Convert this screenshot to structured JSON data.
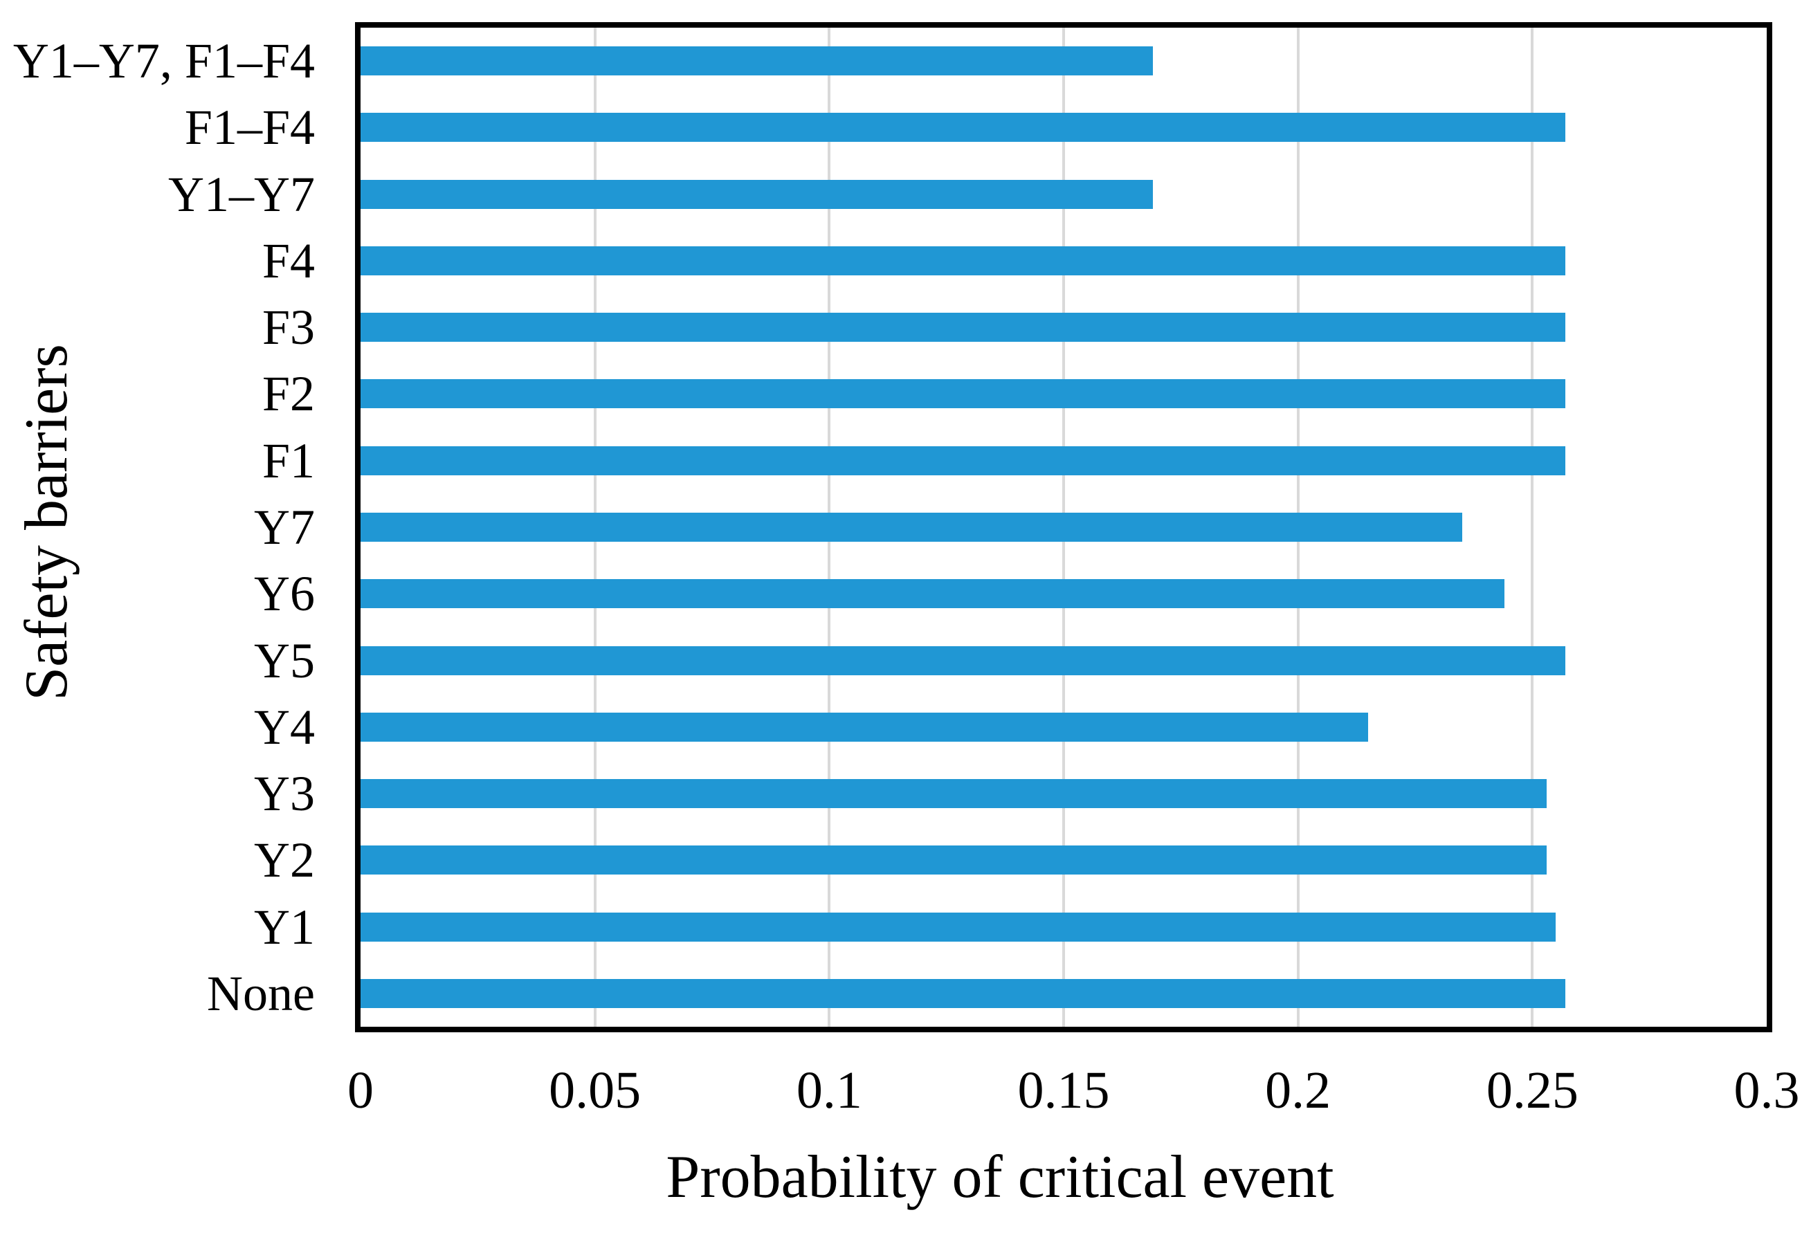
{
  "chart_data": {
    "type": "bar",
    "orientation": "horizontal",
    "xlabel": "Probability of critical event",
    "ylabel": "Safety barriers",
    "xlim": [
      0,
      0.3
    ],
    "xticks": [
      0,
      0.05,
      0.1,
      0.15,
      0.2,
      0.25,
      0.3
    ],
    "xtick_labels": [
      "0",
      "0.05",
      "0.1",
      "0.15",
      "0.2",
      "0.25",
      "0.3"
    ],
    "grid": true,
    "legend": false,
    "categories_top_to_bottom": [
      "Y1–Y7, F1–F4",
      "F1–F4",
      "Y1–Y7",
      "F4",
      "F3",
      "F2",
      "F1",
      "Y7",
      "Y6",
      "Y5",
      "Y4",
      "Y3",
      "Y2",
      "Y1",
      "None"
    ],
    "series": [
      {
        "name": "Probability of critical event",
        "values_top_to_bottom": [
          0.169,
          0.257,
          0.169,
          0.257,
          0.257,
          0.257,
          0.257,
          0.235,
          0.244,
          0.257,
          0.215,
          0.253,
          0.253,
          0.255,
          0.257
        ]
      }
    ],
    "bar_color": "#2097D4",
    "gridline_color": "#D9D9D9",
    "border_color": "#000000",
    "text_color": "#000000"
  }
}
